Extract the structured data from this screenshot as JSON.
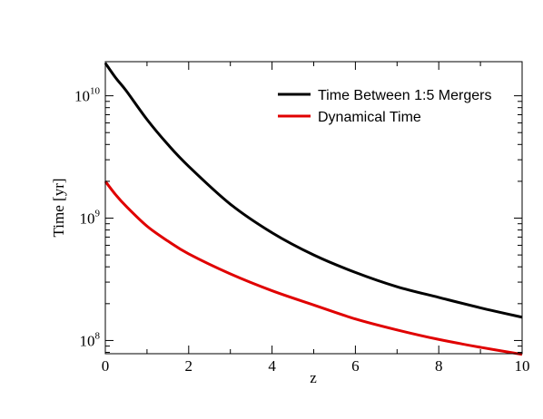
{
  "chart_data": {
    "type": "line",
    "xlabel": "z",
    "ylabel": "Time [yr]",
    "xlim": [
      0,
      10
    ],
    "ylim": [
      78000000.0,
      19000000000.0
    ],
    "yscale": "log",
    "grid": false,
    "legend_position": "top-right",
    "x_ticks": [
      0,
      2,
      4,
      6,
      8,
      10
    ],
    "y_ticks": [
      {
        "value": 100000000.0,
        "base": "10",
        "exp": "8"
      },
      {
        "value": 1000000000.0,
        "base": "10",
        "exp": "9"
      },
      {
        "value": 10000000000.0,
        "base": "10",
        "exp": "10"
      }
    ],
    "series": [
      {
        "name": "Time Between 1:5 Mergers",
        "color": "#000000",
        "x": [
          0,
          0.25,
          0.5,
          1,
          1.5,
          2,
          3,
          4,
          5,
          6,
          7,
          8,
          9,
          10
        ],
        "y": [
          18500000000.0,
          14000000000.0,
          11000000000.0,
          6400000000.0,
          4000000000.0,
          2650000000.0,
          1300000000.0,
          760000000.0,
          500000000.0,
          360000000.0,
          275000000.0,
          225000000.0,
          185000000.0,
          155000000.0
        ]
      },
      {
        "name": "Dynamical Time",
        "color": "#e00000",
        "x": [
          0,
          0.25,
          0.5,
          1,
          1.5,
          2,
          3,
          4,
          5,
          6,
          7,
          8,
          9,
          10
        ],
        "y": [
          2000000000.0,
          1550000000.0,
          1250000000.0,
          860000000.0,
          650000000.0,
          510000000.0,
          350000000.0,
          255000000.0,
          195000000.0,
          150000000.0,
          122000000.0,
          102000000.0,
          88000000.0,
          77000000.0
        ]
      }
    ]
  }
}
